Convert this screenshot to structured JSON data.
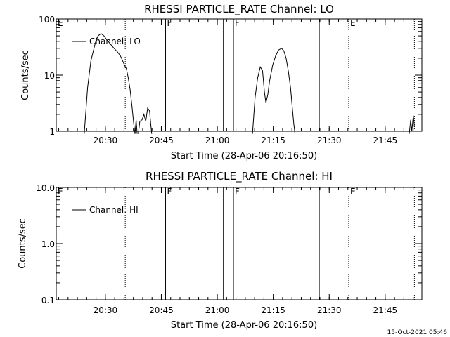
{
  "footer_timestamp": "15-Oct-2021 05:46",
  "chart_data": [
    {
      "type": "line",
      "title": "RHESSI PARTICLE_RATE Channel: LO",
      "xlabel": "Start Time (28-Apr-06 20:16:50)",
      "ylabel": "Counts/sec",
      "log_y": true,
      "xlim_minutes_after_start": [
        0,
        98
      ],
      "ylim": [
        1,
        100
      ],
      "x_tick_labels": [
        "20:30",
        "20:45",
        "21:00",
        "21:15",
        "21:30",
        "21:45"
      ],
      "x_tick_minutes": [
        13.17,
        28.17,
        43.17,
        58.17,
        73.17,
        88.17
      ],
      "y_tick_labels": [
        "1",
        "10",
        "100"
      ],
      "y_tick_values": [
        1,
        10,
        100
      ],
      "legend": {
        "label": "Channel: LO",
        "position": "top-left"
      },
      "event_markers": [
        {
          "label": "E",
          "minute": 0,
          "style": "none"
        },
        {
          "label": "",
          "minute": 18.5,
          "style": "dotted"
        },
        {
          "label": "F",
          "minute": 29.3,
          "style": "solid"
        },
        {
          "label": "",
          "minute": 44.8,
          "style": "solid"
        },
        {
          "label": "F",
          "minute": 47.5,
          "style": "solid"
        },
        {
          "label": "",
          "minute": 70.5,
          "style": "solid"
        },
        {
          "label": "E",
          "minute": 78.4,
          "style": "dotted"
        },
        {
          "label": "",
          "minute": 96.0,
          "style": "dotted"
        }
      ],
      "series": [
        {
          "name": "Channel: LO",
          "segments": [
            [
              [
                7.5,
                0.9
              ],
              [
                8.4,
                6
              ],
              [
                9.3,
                18
              ],
              [
                10.5,
                38
              ],
              [
                11.2,
                50
              ],
              [
                12.0,
                55
              ],
              [
                12.8,
                50
              ],
              [
                13.6,
                42
              ],
              [
                14.5,
                36
              ],
              [
                15.5,
                30
              ],
              [
                16.4,
                26
              ],
              [
                17.2,
                22
              ],
              [
                17.8,
                18
              ],
              [
                18.3,
                15
              ],
              [
                18.8,
                13
              ],
              [
                19.3,
                9
              ],
              [
                19.8,
                5.5
              ],
              [
                20.3,
                2.8
              ],
              [
                20.8,
                1.3
              ],
              [
                21.1,
                0.9
              ]
            ],
            [
              [
                21.1,
                0.9
              ],
              [
                21.4,
                1.6
              ],
              [
                21.7,
                0.9
              ]
            ],
            [
              [
                22.0,
                0.9
              ],
              [
                22.4,
                1.5
              ],
              [
                23.0,
                1.6
              ],
              [
                23.5,
                2.0
              ],
              [
                24.0,
                1.5
              ],
              [
                24.5,
                2.6
              ],
              [
                25.0,
                2.3
              ],
              [
                25.4,
                1.2
              ],
              [
                25.6,
                0.9
              ]
            ],
            [
              [
                52.6,
                0.9
              ],
              [
                53.3,
                4
              ],
              [
                54.0,
                9
              ],
              [
                54.7,
                14
              ],
              [
                55.3,
                12
              ],
              [
                55.8,
                5
              ],
              [
                56.2,
                3.2
              ],
              [
                56.7,
                4.5
              ],
              [
                57.2,
                8
              ],
              [
                58.0,
                15
              ],
              [
                58.8,
                22
              ],
              [
                59.6,
                28
              ],
              [
                60.4,
                30
              ],
              [
                61.0,
                27
              ],
              [
                61.6,
                20
              ],
              [
                62.2,
                12
              ],
              [
                62.8,
                6
              ],
              [
                63.3,
                2.5
              ],
              [
                63.7,
                1.3
              ],
              [
                64.0,
                0.9
              ]
            ],
            [
              [
                94.6,
                0.9
              ],
              [
                95.0,
                1.6
              ],
              [
                95.3,
                1.0
              ],
              [
                95.7,
                1.9
              ],
              [
                96.0,
                1.2
              ]
            ]
          ]
        }
      ]
    },
    {
      "type": "line",
      "title": "RHESSI PARTICLE_RATE Channel: HI",
      "xlabel": "Start Time (28-Apr-06 20:16:50)",
      "ylabel": "Counts/sec",
      "log_y": true,
      "xlim_minutes_after_start": [
        0,
        98
      ],
      "ylim": [
        0.1,
        10
      ],
      "x_tick_labels": [
        "20:30",
        "20:45",
        "21:00",
        "21:15",
        "21:30",
        "21:45"
      ],
      "x_tick_minutes": [
        13.17,
        28.17,
        43.17,
        58.17,
        73.17,
        88.17
      ],
      "y_tick_labels": [
        "0.1",
        "1.0",
        "10.0"
      ],
      "y_tick_values": [
        0.1,
        1,
        10
      ],
      "legend": {
        "label": "Channel: HI",
        "position": "top-left"
      },
      "event_markers": [
        {
          "label": "E",
          "minute": 0,
          "style": "none"
        },
        {
          "label": "",
          "minute": 18.5,
          "style": "dotted"
        },
        {
          "label": "F",
          "minute": 29.3,
          "style": "solid"
        },
        {
          "label": "",
          "minute": 44.8,
          "style": "solid"
        },
        {
          "label": "F",
          "minute": 47.5,
          "style": "solid"
        },
        {
          "label": "",
          "minute": 70.5,
          "style": "solid"
        },
        {
          "label": "E",
          "minute": 78.4,
          "style": "dotted"
        },
        {
          "label": "",
          "minute": 96.0,
          "style": "dotted"
        }
      ],
      "series": [
        {
          "name": "Channel: HI",
          "segments": []
        }
      ]
    }
  ]
}
